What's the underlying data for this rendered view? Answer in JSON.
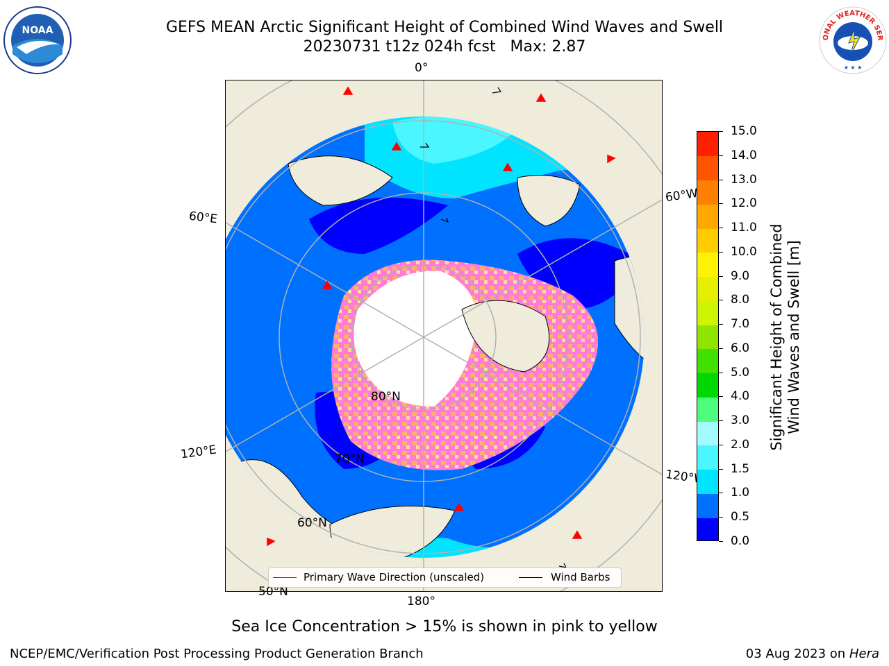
{
  "title": {
    "line1": "GEFS MEAN Arctic Significant Height of Combined Wind Waves and Swell",
    "line2": "20230731 t12z 024h fcst   Max: 2.87"
  },
  "map": {
    "projection": "north-polar-stereographic",
    "longitude_labels": {
      "top": "0°",
      "left_upper": "60°E",
      "left_lower": "120°E",
      "bottom": "180°",
      "right_upper": "60°W",
      "right_lower": "120°W"
    },
    "latitude_labels": {
      "lat80": "80°N",
      "lat70": "70°N",
      "lat60": "60°N",
      "lat50": "50°N"
    },
    "colors": {
      "land": "#efecdc",
      "ice_free_center": "#ffffff",
      "grid": "#b0b0b0",
      "arrow": "#ff0000",
      "barb": "#000000"
    }
  },
  "colorbar": {
    "label": "Significant Height of Combined Wind Waves and Swell [m]",
    "ticks": [
      "0.0",
      "0.5",
      "1.0",
      "1.5",
      "2.0",
      "3.0",
      "4.0",
      "5.0",
      "6.0",
      "7.0",
      "8.0",
      "9.0",
      "10.0",
      "11.0",
      "12.0",
      "13.0",
      "14.0",
      "15.0"
    ],
    "colors": [
      "#0000ff",
      "#0070ff",
      "#00e4ff",
      "#4af6ff",
      "#a4fbff",
      "#4dfc7a",
      "#00d900",
      "#40e000",
      "#8fe400",
      "#cef400",
      "#e5f000",
      "#fff200",
      "#ffcc00",
      "#ffa800",
      "#ff8000",
      "#ff5400",
      "#ff2000"
    ]
  },
  "legend": {
    "wave_label": "Primary Wave Direction (unscaled)",
    "wave_color": "#ff0000",
    "barb_label": "Wind Barbs",
    "barb_color": "#000000"
  },
  "note": "Sea Ice Concentration > 15% is shown in pink to yellow",
  "footer": {
    "left": "NCEP/EMC/Verification Post Processing Product Generation Branch",
    "date": "03 Aug 2023 on",
    "machine": "Hera"
  },
  "logos": {
    "noaa_text": "NOAA",
    "nws_text": "NATIONAL WEATHER SERVICE"
  }
}
